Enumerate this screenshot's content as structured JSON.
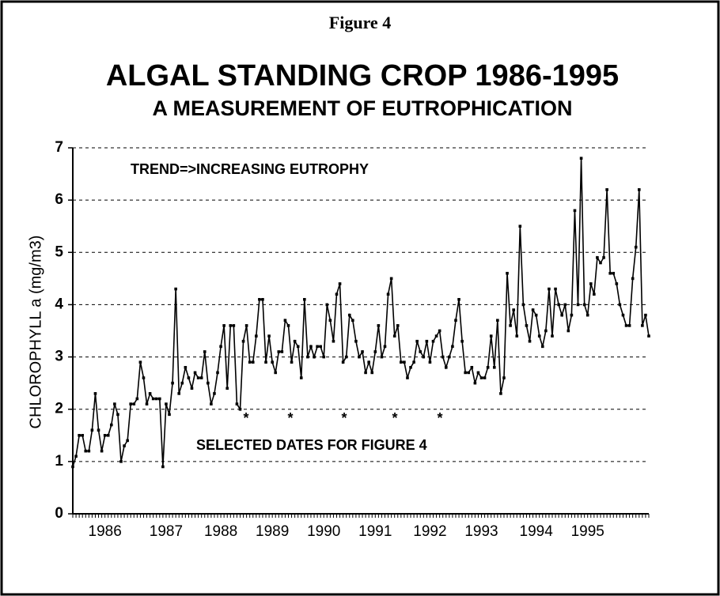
{
  "chart_data": {
    "type": "line",
    "figure_label": "Figure 4",
    "title": "ALGAL STANDING CROP 1986-1995",
    "subtitle": "A MEASUREMENT OF EUTROPHICATION",
    "y_label": "CHLOROPHYLL a (mg/m3)",
    "annotations": [
      "TREND=>INCREASING  EUTROPHY",
      "SELECTED DATES FOR FIGURE 4"
    ],
    "selected_date_marks": [
      "*",
      "*",
      "*",
      "*",
      "*"
    ],
    "ylim": [
      0,
      7
    ],
    "yticks": [
      0,
      1,
      2,
      3,
      4,
      5,
      6,
      7
    ],
    "grid": true,
    "categories": [
      null,
      null,
      null,
      null,
      null,
      null,
      null,
      null,
      null,
      null,
      "1986",
      null,
      null,
      null,
      null,
      null,
      null,
      null,
      null,
      null,
      null,
      null,
      null,
      null,
      null,
      null,
      null,
      null,
      null,
      "1987",
      null,
      null,
      null,
      null,
      null,
      null,
      null,
      null,
      null,
      null,
      null,
      null,
      null,
      null,
      null,
      null,
      "1988",
      null,
      null,
      null,
      null,
      null,
      null,
      null,
      null,
      null,
      null,
      null,
      null,
      null,
      null,
      null,
      "1989",
      null,
      null,
      null,
      null,
      null,
      null,
      null,
      null,
      null,
      null,
      null,
      null,
      null,
      null,
      null,
      "1990",
      null,
      null,
      null,
      null,
      null,
      null,
      null,
      null,
      null,
      null,
      null,
      null,
      null,
      null,
      null,
      "1991",
      null,
      null,
      null,
      null,
      null,
      null,
      null,
      null,
      null,
      null,
      null,
      null,
      null,
      null,
      null,
      null,
      "1992",
      null,
      null,
      null,
      null,
      null,
      null,
      null,
      null,
      null,
      null,
      null,
      null,
      null,
      null,
      null,
      "1993",
      null,
      null,
      null,
      null,
      null,
      null,
      null,
      null,
      null,
      null,
      null,
      null,
      null,
      null,
      null,
      null,
      "1994",
      null,
      null,
      null,
      null,
      null,
      null,
      null,
      null,
      null,
      null,
      null,
      null,
      null,
      null,
      null,
      "1995",
      null,
      null,
      null,
      null,
      null,
      null,
      null,
      null,
      null,
      null,
      null,
      null,
      null,
      null,
      null,
      null,
      null,
      null,
      null
    ],
    "series": [
      {
        "name": "Chlorophyll a",
        "color": "#000000",
        "values": [
          0.9,
          1.1,
          1.5,
          1.5,
          1.2,
          1.2,
          1.6,
          2.3,
          1.6,
          1.2,
          1.5,
          1.5,
          1.7,
          2.1,
          1.9,
          1.0,
          1.3,
          1.4,
          2.1,
          2.1,
          2.2,
          2.9,
          2.6,
          2.1,
          2.3,
          2.2,
          2.2,
          2.2,
          0.9,
          2.1,
          1.9,
          2.5,
          4.3,
          2.3,
          2.5,
          2.8,
          2.6,
          2.4,
          2.7,
          2.6,
          2.6,
          3.1,
          2.5,
          2.1,
          2.3,
          2.7,
          3.2,
          3.6,
          2.4,
          3.6,
          3.6,
          2.1,
          2.0,
          3.3,
          3.6,
          2.9,
          2.9,
          3.4,
          4.1,
          4.1,
          2.9,
          3.4,
          2.9,
          2.7,
          3.1,
          3.1,
          3.7,
          3.6,
          2.9,
          3.3,
          3.2,
          2.6,
          4.1,
          3.0,
          3.2,
          3.0,
          3.2,
          3.2,
          3.0,
          4.0,
          3.7,
          3.3,
          4.2,
          4.4,
          2.9,
          3.0,
          3.8,
          3.7,
          3.3,
          3.0,
          3.1,
          2.7,
          2.9,
          2.7,
          3.1,
          3.6,
          3.0,
          3.2,
          4.2,
          4.5,
          3.4,
          3.6,
          2.9,
          2.9,
          2.6,
          2.8,
          2.9,
          3.3,
          3.1,
          3.0,
          3.3,
          2.9,
          3.3,
          3.4,
          3.5,
          3.0,
          2.8,
          3.0,
          3.2,
          3.7,
          4.1,
          3.3,
          2.7,
          2.7,
          2.8,
          2.5,
          2.7,
          2.6,
          2.6,
          2.8,
          3.4,
          2.8,
          3.7,
          2.3,
          2.6,
          4.6,
          3.6,
          3.9,
          3.4,
          5.5,
          4.0,
          3.6,
          3.3,
          3.9,
          3.8,
          3.4,
          3.2,
          3.5,
          4.3,
          3.4,
          4.3,
          4.0,
          3.8,
          4.0,
          3.5,
          3.8,
          5.8,
          4.0,
          6.8,
          4.0,
          3.8,
          4.4,
          4.2,
          4.9,
          4.8,
          4.9,
          6.2,
          4.6,
          4.6,
          4.4,
          4.0,
          3.8,
          3.6,
          3.6,
          4.5,
          5.1,
          6.2,
          3.6,
          3.8,
          3.4
        ]
      }
    ]
  }
}
